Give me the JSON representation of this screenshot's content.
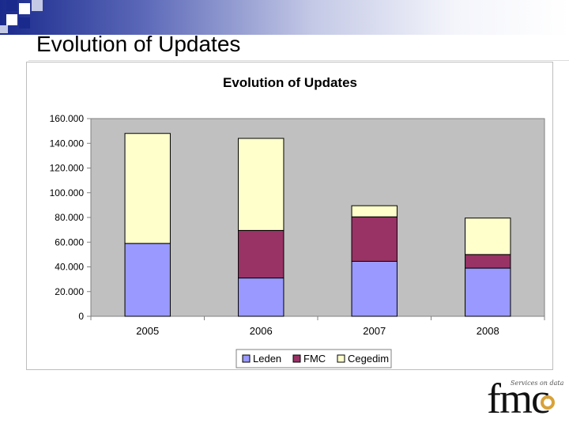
{
  "slide": {
    "title": "Evolution of Updates"
  },
  "logo": {
    "text": "fmc",
    "tagline": "Services on data"
  },
  "colors": {
    "leden": "#9999ff",
    "fmc": "#993366",
    "cegedim": "#ffffcc",
    "plot_bg": "#c0c0c0",
    "accent": "#1a2a8c"
  },
  "chart_data": {
    "type": "bar",
    "stacked": true,
    "title": "Evolution of Updates",
    "xlabel": "",
    "ylabel": "",
    "categories": [
      "2005",
      "2006",
      "2007",
      "2008"
    ],
    "series": [
      {
        "name": "Leden",
        "values": [
          59000,
          31000,
          44500,
          39000
        ]
      },
      {
        "name": "FMC",
        "values": [
          0,
          38500,
          36000,
          11000
        ]
      },
      {
        "name": "Cegedim",
        "values": [
          89000,
          74500,
          9000,
          29500
        ]
      }
    ],
    "ylim": [
      0,
      160000
    ],
    "yticks": [
      "0",
      "20.000",
      "40.000",
      "60.000",
      "80.000",
      "100.000",
      "120.000",
      "140.000",
      "160.000"
    ],
    "grid": false,
    "legend": "bottom"
  }
}
